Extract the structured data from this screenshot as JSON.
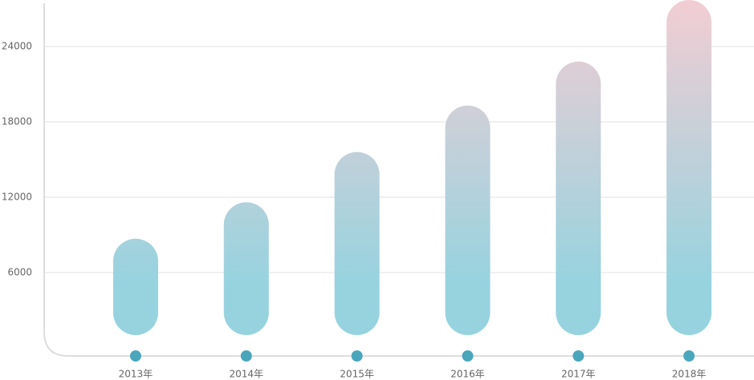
{
  "chart_data": {
    "type": "bar",
    "categories": [
      "2013年",
      "2014年",
      "2015年",
      "2016年",
      "2017年",
      "2018年"
    ],
    "values": [
      8700,
      11600,
      15600,
      19300,
      22800,
      27700
    ],
    "colors": [
      "#f2cdd3",
      "#96d3df"
    ],
    "marker_color": "#4aa6ba",
    "ylim": [
      0,
      27700
    ],
    "yticks": [
      6000,
      12000,
      18000,
      24000
    ],
    "grid": true
  }
}
